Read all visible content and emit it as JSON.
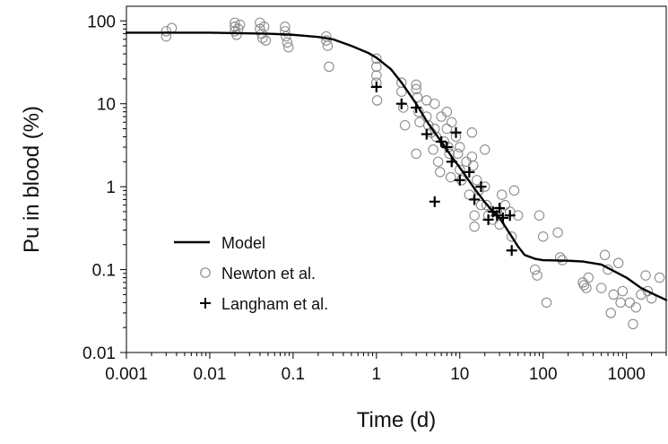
{
  "chart_data": {
    "type": "scatter",
    "xlabel": "Time (d)",
    "ylabel": "Pu in blood (%)",
    "x_scale": "log",
    "y_scale": "log",
    "xlim": [
      0.001,
      3000
    ],
    "ylim": [
      0.01,
      150
    ],
    "x_ticks": [
      0.001,
      0.01,
      0.1,
      1,
      10,
      100,
      1000
    ],
    "x_tick_labels": [
      "0.001",
      "0.01",
      "0.1",
      "1",
      "10",
      "100",
      "1000"
    ],
    "y_ticks": [
      0.01,
      0.1,
      1,
      10,
      100
    ],
    "y_tick_labels": [
      "0.01",
      "0.1",
      "1",
      "10",
      "100"
    ],
    "grid": false,
    "legend_position": "bottom-left",
    "series": [
      {
        "name": "Model",
        "kind": "line",
        "color": "#000000",
        "points": [
          [
            0.001,
            72
          ],
          [
            0.01,
            72
          ],
          [
            0.05,
            70
          ],
          [
            0.1,
            68
          ],
          [
            0.2,
            64
          ],
          [
            0.3,
            60
          ],
          [
            0.5,
            50
          ],
          [
            0.8,
            41
          ],
          [
            1,
            36
          ],
          [
            1.5,
            26
          ],
          [
            2,
            18
          ],
          [
            3,
            10
          ],
          [
            4,
            6.2
          ],
          [
            5,
            4.5
          ],
          [
            6,
            3.5
          ],
          [
            8,
            2.3
          ],
          [
            10,
            1.7
          ],
          [
            15,
            0.95
          ],
          [
            20,
            0.65
          ],
          [
            25,
            0.5
          ],
          [
            30,
            0.42
          ],
          [
            40,
            0.27
          ],
          [
            50,
            0.19
          ],
          [
            60,
            0.15
          ],
          [
            80,
            0.135
          ],
          [
            100,
            0.13
          ],
          [
            200,
            0.128
          ],
          [
            300,
            0.125
          ],
          [
            500,
            0.115
          ],
          [
            800,
            0.09
          ],
          [
            1000,
            0.08
          ],
          [
            1500,
            0.06
          ],
          [
            2000,
            0.052
          ],
          [
            3000,
            0.043
          ]
        ]
      },
      {
        "name": "Newton et al.",
        "kind": "scatter",
        "marker": "open-circle",
        "color": "#8c8c8c",
        "points": [
          [
            0.003,
            75
          ],
          [
            0.003,
            65
          ],
          [
            0.0035,
            82
          ],
          [
            0.02,
            95
          ],
          [
            0.02,
            85
          ],
          [
            0.02,
            75
          ],
          [
            0.021,
            68
          ],
          [
            0.022,
            80
          ],
          [
            0.023,
            90
          ],
          [
            0.04,
            95
          ],
          [
            0.04,
            80
          ],
          [
            0.042,
            70
          ],
          [
            0.043,
            62
          ],
          [
            0.045,
            85
          ],
          [
            0.047,
            58
          ],
          [
            0.08,
            85
          ],
          [
            0.08,
            75
          ],
          [
            0.082,
            65
          ],
          [
            0.085,
            55
          ],
          [
            0.088,
            48
          ],
          [
            0.25,
            65
          ],
          [
            0.25,
            58
          ],
          [
            0.26,
            50
          ],
          [
            0.27,
            28
          ],
          [
            1,
            35
          ],
          [
            1,
            28
          ],
          [
            1,
            22
          ],
          [
            1,
            18
          ],
          [
            1.02,
            11
          ],
          [
            2,
            18
          ],
          [
            2,
            14
          ],
          [
            2.1,
            9
          ],
          [
            2.2,
            5.5
          ],
          [
            3,
            17
          ],
          [
            3,
            15
          ],
          [
            3.1,
            12
          ],
          [
            3.2,
            8
          ],
          [
            3,
            2.5
          ],
          [
            3.3,
            6
          ],
          [
            4,
            11
          ],
          [
            4,
            7
          ],
          [
            4.2,
            5.5
          ],
          [
            4.5,
            4.5
          ],
          [
            4.8,
            2.8
          ],
          [
            5,
            10
          ],
          [
            5,
            5
          ],
          [
            5.2,
            4
          ],
          [
            5.5,
            2
          ],
          [
            5.8,
            1.5
          ],
          [
            6,
            7
          ],
          [
            6.5,
            3.5
          ],
          [
            7,
            8
          ],
          [
            7,
            5
          ],
          [
            7.3,
            3
          ],
          [
            7.5,
            2.5
          ],
          [
            7.8,
            1.3
          ],
          [
            8,
            6
          ],
          [
            9,
            4
          ],
          [
            9.5,
            2.5
          ],
          [
            10,
            3
          ],
          [
            10,
            1.6
          ],
          [
            10.5,
            1.2
          ],
          [
            12,
            2
          ],
          [
            13,
            0.8
          ],
          [
            14,
            4.5
          ],
          [
            14,
            2.3
          ],
          [
            14.5,
            1.8
          ],
          [
            15,
            0.45
          ],
          [
            15,
            0.33
          ],
          [
            16,
            1.2
          ],
          [
            17,
            0.9
          ],
          [
            18,
            0.6
          ],
          [
            20,
            2.8
          ],
          [
            20,
            1
          ],
          [
            21,
            0.6
          ],
          [
            22,
            0.45
          ],
          [
            25,
            0.4
          ],
          [
            28,
            0.5
          ],
          [
            30,
            0.35
          ],
          [
            32,
            0.8
          ],
          [
            35,
            0.6
          ],
          [
            40,
            0.5
          ],
          [
            42,
            0.25
          ],
          [
            45,
            0.9
          ],
          [
            50,
            0.45
          ],
          [
            80,
            0.1
          ],
          [
            85,
            0.085
          ],
          [
            90,
            0.45
          ],
          [
            100,
            0.25
          ],
          [
            110,
            0.04
          ],
          [
            150,
            0.28
          ],
          [
            160,
            0.14
          ],
          [
            170,
            0.13
          ],
          [
            300,
            0.07
          ],
          [
            310,
            0.065
          ],
          [
            330,
            0.06
          ],
          [
            350,
            0.08
          ],
          [
            500,
            0.06
          ],
          [
            550,
            0.15
          ],
          [
            600,
            0.1
          ],
          [
            650,
            0.03
          ],
          [
            700,
            0.05
          ],
          [
            800,
            0.12
          ],
          [
            850,
            0.04
          ],
          [
            900,
            0.055
          ],
          [
            1100,
            0.04
          ],
          [
            1200,
            0.022
          ],
          [
            1300,
            0.035
          ],
          [
            1500,
            0.05
          ],
          [
            1700,
            0.085
          ],
          [
            1800,
            0.055
          ],
          [
            2000,
            0.045
          ],
          [
            2500,
            0.08
          ]
        ]
      },
      {
        "name": "Langham et al.",
        "kind": "scatter",
        "marker": "plus",
        "color": "#000000",
        "points": [
          [
            1,
            16
          ],
          [
            2,
            10
          ],
          [
            3,
            9
          ],
          [
            4,
            4.3
          ],
          [
            5,
            0.66
          ],
          [
            6,
            3.5
          ],
          [
            7,
            3
          ],
          [
            8,
            2
          ],
          [
            9,
            4.5
          ],
          [
            10,
            1.2
          ],
          [
            13,
            1.5
          ],
          [
            15,
            0.7
          ],
          [
            18,
            1
          ],
          [
            22,
            0.4
          ],
          [
            25,
            0.5
          ],
          [
            28,
            0.45
          ],
          [
            30,
            0.55
          ],
          [
            33,
            0.42
          ],
          [
            40,
            0.45
          ],
          [
            42,
            0.17
          ]
        ]
      }
    ]
  }
}
